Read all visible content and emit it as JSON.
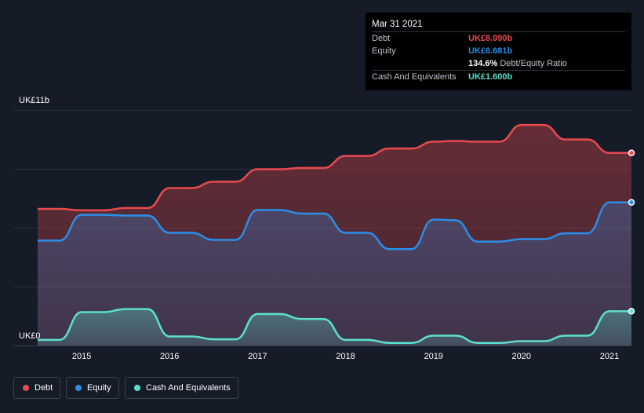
{
  "tooltip": {
    "date": "Mar 31 2021",
    "debt_label": "Debt",
    "debt_value": "UK£8.990b",
    "equity_label": "Equity",
    "equity_value": "UK£6.681b",
    "ratio_value": "134.6%",
    "ratio_label": "Debt/Equity Ratio",
    "cash_label": "Cash And Equivalents",
    "cash_value": "UK£1.600b"
  },
  "legend": {
    "debt": "Debt",
    "equity": "Equity",
    "cash": "Cash And Equivalents"
  },
  "colors": {
    "background": "#151b27",
    "debt": "#e84a4f",
    "equity": "#2b8ee8",
    "cash": "#5ddfcf"
  },
  "chart_data": {
    "type": "area",
    "y_max_label": "UK£11b",
    "y_min_label": "UK£0",
    "ylim": [
      0,
      11
    ],
    "xlim": [
      2014.5,
      2021.25
    ],
    "x_ticks": [
      "2015",
      "2016",
      "2017",
      "2018",
      "2019",
      "2020",
      "2021"
    ],
    "grid": true,
    "legend_position": "bottom-left",
    "series": [
      {
        "name": "Debt",
        "x": [
          2014.5,
          2014.75,
          2015.0,
          2015.25,
          2015.5,
          2015.75,
          2016.0,
          2016.25,
          2016.5,
          2016.75,
          2017.0,
          2017.25,
          2017.5,
          2017.75,
          2018.0,
          2018.25,
          2018.5,
          2018.75,
          2019.0,
          2019.25,
          2019.5,
          2019.75,
          2020.0,
          2020.25,
          2020.5,
          2020.75,
          2021.0,
          2021.25
        ],
        "values": [
          6.38,
          6.38,
          6.31,
          6.31,
          6.42,
          6.42,
          7.35,
          7.35,
          7.65,
          7.65,
          8.23,
          8.23,
          8.29,
          8.29,
          8.85,
          8.85,
          9.2,
          9.2,
          9.52,
          9.55,
          9.52,
          9.52,
          10.3,
          10.3,
          9.62,
          9.62,
          8.99,
          8.99
        ]
      },
      {
        "name": "Equity",
        "x": [
          2014.5,
          2014.75,
          2015.0,
          2015.25,
          2015.5,
          2015.75,
          2016.0,
          2016.25,
          2016.5,
          2016.75,
          2017.0,
          2017.25,
          2017.5,
          2017.75,
          2018.0,
          2018.25,
          2018.5,
          2018.75,
          2019.0,
          2019.25,
          2019.5,
          2019.75,
          2020.0,
          2020.25,
          2020.5,
          2020.75,
          2021.0,
          2021.25
        ],
        "values": [
          4.9,
          4.9,
          6.1,
          6.1,
          6.07,
          6.07,
          5.26,
          5.26,
          4.93,
          4.93,
          6.33,
          6.33,
          6.16,
          6.16,
          5.26,
          5.26,
          4.5,
          4.5,
          5.88,
          5.85,
          4.85,
          4.85,
          4.97,
          4.97,
          5.24,
          5.24,
          6.68,
          6.68
        ]
      },
      {
        "name": "Cash And Equivalents",
        "x": [
          2014.5,
          2014.75,
          2015.0,
          2015.25,
          2015.5,
          2015.75,
          2016.0,
          2016.25,
          2016.5,
          2016.75,
          2017.0,
          2017.25,
          2017.5,
          2017.75,
          2018.0,
          2018.25,
          2018.5,
          2018.75,
          2019.0,
          2019.25,
          2019.5,
          2019.75,
          2020.0,
          2020.25,
          2020.5,
          2020.75,
          2021.0,
          2021.25
        ],
        "values": [
          0.26,
          0.26,
          1.56,
          1.56,
          1.7,
          1.7,
          0.42,
          0.42,
          0.29,
          0.29,
          1.47,
          1.47,
          1.24,
          1.24,
          0.26,
          0.26,
          0.12,
          0.12,
          0.46,
          0.46,
          0.12,
          0.12,
          0.2,
          0.2,
          0.46,
          0.46,
          1.6,
          1.6
        ]
      }
    ]
  }
}
